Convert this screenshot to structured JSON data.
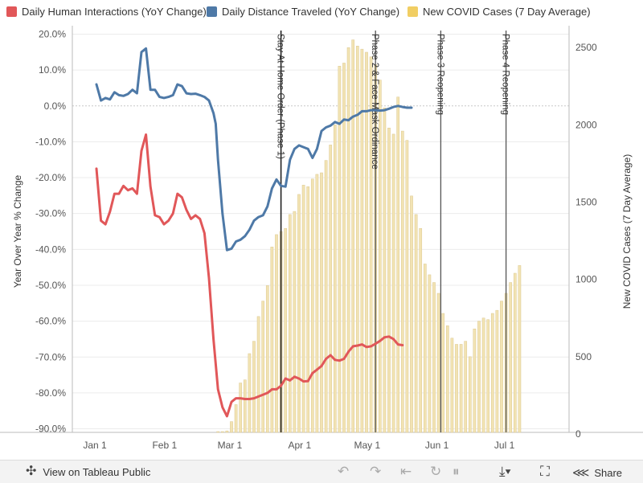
{
  "legend": [
    {
      "label": "Daily Human Interactions (YoY Change)",
      "color": "#e15759"
    },
    {
      "label": "Daily Distance Traveled (YoY Change)",
      "color": "#4e79a7"
    },
    {
      "label": "New COVID Cases (7 Day Average)",
      "color": "#f1ce63"
    }
  ],
  "chart_data": {
    "type": "line",
    "ylabel_left": "Year Over Year % Change",
    "ylabel_right": "New COVID Cases (7 Day Average)",
    "x_ticks": [
      {
        "label": "Jan 1",
        "day": 0
      },
      {
        "label": "Feb 1",
        "day": 31
      },
      {
        "label": "Mar 1",
        "day": 60
      },
      {
        "label": "Apr 1",
        "day": 91
      },
      {
        "label": "May 1",
        "day": 121
      },
      {
        "label": "Jun 1",
        "day": 152
      },
      {
        "label": "Jul 1",
        "day": 182
      }
    ],
    "y_left_ticks": [
      "20.0%",
      "10.0%",
      "0.0%",
      "-10.0%",
      "-20.0%",
      "-30.0%",
      "-40.0%",
      "-50.0%",
      "-60.0%",
      "-70.0%",
      "-80.0%",
      "-90.0%"
    ],
    "y_left_values": [
      20,
      10,
      0,
      -10,
      -20,
      -30,
      -40,
      -50,
      -60,
      -70,
      -80,
      -90
    ],
    "ylim_left": [
      -91,
      21
    ],
    "y_right_ticks": [
      "2500",
      "2000",
      "1500",
      "1000",
      "500",
      "0"
    ],
    "y_right_values": [
      2500,
      2000,
      1500,
      1000,
      500,
      0
    ],
    "ylim_right": [
      0,
      2600
    ],
    "reference_lines": [
      {
        "label": "Stay At Home Order (Phase 1)",
        "day": 82
      },
      {
        "label": "Phase 2 & Face Mask Ordinance",
        "day": 124
      },
      {
        "label": "Phase 3 Reopening",
        "day": 153
      },
      {
        "label": "Phase 4 Reopening",
        "day": 182
      }
    ],
    "series": [
      {
        "name": "Daily Distance Traveled (YoY Change)",
        "color": "#4e79a7",
        "points": [
          [
            0,
            6
          ],
          [
            2,
            1.5
          ],
          [
            4,
            2.2
          ],
          [
            6,
            1.8
          ],
          [
            8,
            3.8
          ],
          [
            10,
            3
          ],
          [
            12,
            2.8
          ],
          [
            14,
            3.3
          ],
          [
            16,
            4.5
          ],
          [
            18,
            3.5
          ],
          [
            20,
            15
          ],
          [
            22,
            16
          ],
          [
            24,
            4.5
          ],
          [
            26,
            4.5
          ],
          [
            28,
            2.5
          ],
          [
            30,
            2.2
          ],
          [
            32,
            2.5
          ],
          [
            34,
            3
          ],
          [
            36,
            6
          ],
          [
            38,
            5.5
          ],
          [
            40,
            3.5
          ],
          [
            42,
            3.3
          ],
          [
            44,
            3.4
          ],
          [
            46,
            3
          ],
          [
            48,
            2.5
          ],
          [
            50,
            1.5
          ],
          [
            52,
            -2
          ],
          [
            53,
            -5
          ],
          [
            54,
            -15
          ],
          [
            56,
            -30
          ],
          [
            58,
            -40.2
          ],
          [
            60,
            -39.8
          ],
          [
            62,
            -37.8
          ],
          [
            64,
            -37.3
          ],
          [
            66,
            -36.3
          ],
          [
            68,
            -34.5
          ],
          [
            70,
            -32
          ],
          [
            72,
            -31
          ],
          [
            74,
            -30.5
          ],
          [
            76,
            -28
          ],
          [
            78,
            -23
          ],
          [
            80,
            -20.5
          ],
          [
            82,
            -22.3
          ],
          [
            84,
            -22.5
          ],
          [
            86,
            -15
          ],
          [
            88,
            -12
          ],
          [
            90,
            -11
          ],
          [
            92,
            -11.5
          ],
          [
            94,
            -12
          ],
          [
            96,
            -14.5
          ],
          [
            98,
            -12
          ],
          [
            100,
            -7
          ],
          [
            102,
            -6
          ],
          [
            104,
            -5.5
          ],
          [
            106,
            -4.5
          ],
          [
            108,
            -5
          ],
          [
            110,
            -3.8
          ],
          [
            112,
            -4
          ],
          [
            114,
            -3
          ],
          [
            116,
            -2.5
          ],
          [
            118,
            -1.5
          ],
          [
            120,
            -1.5
          ],
          [
            122,
            -1.2
          ],
          [
            124,
            -1.2
          ],
          [
            126,
            -1.3
          ],
          [
            128,
            -1.2
          ],
          [
            130,
            -0.8
          ],
          [
            132,
            -0.3
          ],
          [
            134,
            0
          ],
          [
            136,
            -0.3
          ],
          [
            138,
            -0.5
          ],
          [
            140,
            -0.5
          ]
        ]
      },
      {
        "name": "Daily Human Interactions (YoY Change)",
        "color": "#e15759",
        "points": [
          [
            0,
            -17.5
          ],
          [
            2,
            -32
          ],
          [
            4,
            -33
          ],
          [
            6,
            -29.5
          ],
          [
            8,
            -24.5
          ],
          [
            10,
            -24.5
          ],
          [
            12,
            -22.3
          ],
          [
            14,
            -23.5
          ],
          [
            16,
            -23
          ],
          [
            18,
            -24.5
          ],
          [
            20,
            -12.5
          ],
          [
            22,
            -8
          ],
          [
            24,
            -22.5
          ],
          [
            26,
            -30.5
          ],
          [
            28,
            -31
          ],
          [
            30,
            -33
          ],
          [
            32,
            -32
          ],
          [
            34,
            -30
          ],
          [
            36,
            -24.5
          ],
          [
            38,
            -25.5
          ],
          [
            40,
            -29
          ],
          [
            42,
            -31.5
          ],
          [
            44,
            -30.5
          ],
          [
            46,
            -31.5
          ],
          [
            48,
            -35.5
          ],
          [
            50,
            -48
          ],
          [
            52,
            -65
          ],
          [
            54,
            -79
          ],
          [
            56,
            -84
          ],
          [
            58,
            -86.5
          ],
          [
            60,
            -82.5
          ],
          [
            62,
            -81.5
          ],
          [
            64,
            -81.5
          ],
          [
            66,
            -81.7
          ],
          [
            68,
            -81.7
          ],
          [
            70,
            -81.5
          ],
          [
            72,
            -81
          ],
          [
            74,
            -80.5
          ],
          [
            76,
            -80
          ],
          [
            78,
            -79
          ],
          [
            80,
            -79
          ],
          [
            82,
            -78
          ],
          [
            84,
            -76
          ],
          [
            86,
            -76.5
          ],
          [
            88,
            -75.5
          ],
          [
            90,
            -76
          ],
          [
            92,
            -76.8
          ],
          [
            94,
            -76.7
          ],
          [
            96,
            -74.5
          ],
          [
            98,
            -73.5
          ],
          [
            100,
            -72.5
          ],
          [
            102,
            -70.5
          ],
          [
            104,
            -69.5
          ],
          [
            106,
            -70.8
          ],
          [
            108,
            -71
          ],
          [
            110,
            -70.5
          ],
          [
            112,
            -68.5
          ],
          [
            114,
            -67
          ],
          [
            116,
            -66.8
          ],
          [
            118,
            -66.5
          ],
          [
            120,
            -67.2
          ],
          [
            122,
            -67
          ],
          [
            124,
            -66.3
          ],
          [
            126,
            -65.5
          ],
          [
            128,
            -64.5
          ],
          [
            130,
            -64.3
          ],
          [
            132,
            -65
          ],
          [
            134,
            -66.5
          ],
          [
            136,
            -66.7
          ]
        ]
      }
    ],
    "bars": {
      "name": "New COVID Cases (7 Day Average)",
      "color": "#f1ce63",
      "day_start": 54,
      "day_step": 2,
      "values": [
        3,
        8,
        20,
        80,
        190,
        330,
        350,
        520,
        600,
        760,
        860,
        960,
        1210,
        1290,
        1310,
        1330,
        1420,
        1440,
        1550,
        1610,
        1600,
        1650,
        1680,
        1690,
        1770,
        1870,
        2000,
        2380,
        2400,
        2500,
        2550,
        2510,
        2490,
        2470,
        2440,
        2390,
        2290,
        2110,
        1980,
        1940,
        2180,
        1960,
        1900,
        1540,
        1420,
        1330,
        1100,
        1030,
        980,
        910,
        780,
        700,
        620,
        580,
        580,
        600,
        500,
        680,
        730,
        750,
        740,
        780,
        800,
        860,
        910,
        980,
        1040,
        1090
      ]
    }
  },
  "toolbar": {
    "view_label": "View on Tableau Public",
    "share_label": "Share"
  }
}
